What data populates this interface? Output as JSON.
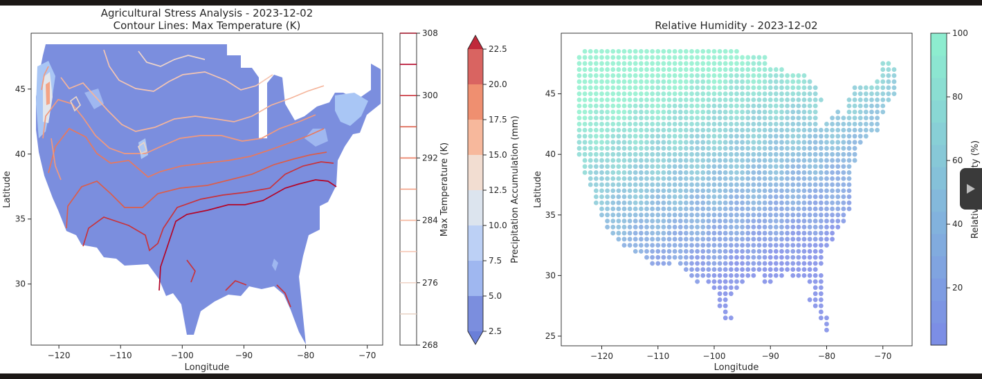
{
  "window": {
    "play_icon": "play-triangle-icon"
  },
  "chart_data": [
    {
      "type": "contour",
      "title": "Agricultural Stress Analysis - 2023-12-02",
      "subtitle": "Contour Lines: Max Temperature (K)",
      "xlabel": "Longitude",
      "ylabel": "Latitude",
      "xlim": [
        -124.5,
        -67.5
      ],
      "ylim": [
        25.3,
        49.3
      ],
      "xticks": [
        -120,
        -110,
        -100,
        -90,
        -80,
        -70
      ],
      "yticks": [
        30,
        35,
        40,
        45
      ],
      "filled_variable": "Precipitation Accumulation (mm)",
      "line_variable": "Max Temperature (K)",
      "temp_colorbar": {
        "label": "Max Temperature (K)",
        "range": [
          268,
          308
        ],
        "ticks": [
          268,
          276,
          284,
          292,
          300,
          308
        ],
        "levels": [
          272,
          276,
          280,
          284,
          288,
          292,
          296,
          300,
          304,
          308
        ]
      },
      "precip_colorbar": {
        "label": "Precipitation Accumulation (mm)",
        "range": [
          2.5,
          22.5
        ],
        "ticks": [
          2.5,
          5.0,
          7.5,
          10.0,
          12.5,
          15.0,
          17.5,
          20.0,
          22.5
        ],
        "extend": "both",
        "colormap": "coolwarm"
      }
    },
    {
      "type": "scatter",
      "title": "Relative Humidity - 2023-12-02",
      "xlabel": "Longitude",
      "ylabel": "Latitude",
      "xlim": [
        -127.2,
        -64.8
      ],
      "ylim": [
        24.2,
        50.0
      ],
      "xticks": [
        -120,
        -110,
        -100,
        -90,
        -80,
        -70
      ],
      "yticks": [
        25,
        30,
        35,
        40,
        45
      ],
      "grid_spacing_deg": 1.0,
      "colorbar": {
        "label": "Relative Humidity (%)",
        "range": [
          2,
          100
        ],
        "ticks": [
          20,
          40,
          60,
          80,
          100
        ],
        "colormap": "cool-green"
      },
      "rows": [
        {
          "lat": 48.5,
          "lons": [
            [
              -123,
              -96
            ]
          ]
        },
        {
          "lat": 48.0,
          "lons": [
            [
              -124,
              -91
            ]
          ]
        },
        {
          "lat": 47.5,
          "lons": [
            [
              -124,
              -91
            ],
            [
              -70,
              -69
            ]
          ]
        },
        {
          "lat": 47.0,
          "lons": [
            [
              -124,
              -89
            ],
            [
              -88,
              -88
            ],
            [
              -70,
              -68
            ]
          ]
        },
        {
          "lat": 46.5,
          "lons": [
            [
              -124,
              -86
            ],
            [
              -85,
              -84
            ],
            [
              -70,
              -68
            ]
          ]
        },
        {
          "lat": 46.0,
          "lons": [
            [
              -124,
              -83
            ],
            [
              -71,
              -68
            ]
          ]
        },
        {
          "lat": 45.5,
          "lons": [
            [
              -124,
              -84
            ],
            [
              -83,
              -82
            ],
            [
              -75,
              -68
            ]
          ]
        },
        {
          "lat": 45.0,
          "lons": [
            [
              -124,
              -85
            ],
            [
              -84,
              -82
            ],
            [
              -75,
              -68
            ]
          ]
        },
        {
          "lat": 44.5,
          "lons": [
            [
              -124,
              -86
            ],
            [
              -85,
              -81
            ],
            [
              -76,
              -69
            ]
          ]
        },
        {
          "lat": 44.0,
          "lons": [
            [
              -124,
              -87
            ],
            [
              -86,
              -82
            ],
            [
              -76,
              -70
            ]
          ]
        },
        {
          "lat": 43.5,
          "lons": [
            [
              -124,
              -87
            ],
            [
              -86,
              -82
            ],
            [
              -78,
              -78
            ],
            [
              -76,
              -70
            ]
          ]
        },
        {
          "lat": 43.0,
          "lons": [
            [
              -124,
              -87
            ],
            [
              -86,
              -82
            ],
            [
              -79,
              -71
            ]
          ]
        },
        {
          "lat": 42.5,
          "lons": [
            [
              -124,
              -87
            ],
            [
              -86,
              -82
            ],
            [
              -80,
              -71
            ]
          ]
        },
        {
          "lat": 42.0,
          "lons": [
            [
              -124,
              -84
            ],
            [
              -83,
              -71
            ]
          ]
        },
        {
          "lat": 41.5,
          "lons": [
            [
              -124,
              -73
            ]
          ]
        },
        {
          "lat": 41.0,
          "lons": [
            [
              -124,
              -74
            ]
          ]
        },
        {
          "lat": 40.5,
          "lons": [
            [
              -124,
              -75
            ]
          ]
        },
        {
          "lat": 40.0,
          "lons": [
            [
              -124,
              -75
            ]
          ]
        },
        {
          "lat": 39.5,
          "lons": [
            [
              -123,
              -75
            ]
          ]
        },
        {
          "lat": 39.0,
          "lons": [
            [
              -123,
              -76
            ]
          ]
        },
        {
          "lat": 38.5,
          "lons": [
            [
              -123,
              -76
            ]
          ]
        },
        {
          "lat": 38.0,
          "lons": [
            [
              -122,
              -76
            ]
          ]
        },
        {
          "lat": 37.5,
          "lons": [
            [
              -122,
              -76
            ]
          ]
        },
        {
          "lat": 37.0,
          "lons": [
            [
              -121,
              -76
            ]
          ]
        },
        {
          "lat": 36.5,
          "lons": [
            [
              -121,
              -76
            ]
          ]
        },
        {
          "lat": 36.0,
          "lons": [
            [
              -121,
              -76
            ]
          ]
        },
        {
          "lat": 35.5,
          "lons": [
            [
              -120,
              -76
            ]
          ]
        },
        {
          "lat": 35.0,
          "lons": [
            [
              -120,
              -77
            ]
          ]
        },
        {
          "lat": 34.5,
          "lons": [
            [
              -119,
              -77
            ]
          ]
        },
        {
          "lat": 34.0,
          "lons": [
            [
              -119,
              -78
            ]
          ]
        },
        {
          "lat": 33.5,
          "lons": [
            [
              -118,
              -79
            ]
          ]
        },
        {
          "lat": 33.0,
          "lons": [
            [
              -117,
              -79
            ]
          ]
        },
        {
          "lat": 32.5,
          "lons": [
            [
              -116,
              -80
            ]
          ]
        },
        {
          "lat": 32.0,
          "lons": [
            [
              -114,
              -81
            ]
          ]
        },
        {
          "lat": 31.5,
          "lons": [
            [
              -112,
              -81
            ]
          ]
        },
        {
          "lat": 31.0,
          "lons": [
            [
              -111,
              -108
            ],
            [
              -106,
              -81
            ]
          ]
        },
        {
          "lat": 30.5,
          "lons": [
            [
              -105,
              -82
            ]
          ]
        },
        {
          "lat": 30.0,
          "lons": [
            [
              -104,
              -93
            ],
            [
              -91,
              -88
            ],
            [
              -86,
              -84
            ],
            [
              -83,
              -81
            ]
          ]
        },
        {
          "lat": 29.5,
          "lons": [
            [
              -103,
              -103
            ],
            [
              -101,
              -95
            ],
            [
              -91,
              -90
            ],
            [
              -83,
              -81
            ]
          ]
        },
        {
          "lat": 29.0,
          "lons": [
            [
              -100,
              -96
            ],
            [
              -82,
              -81
            ]
          ]
        },
        {
          "lat": 28.5,
          "lons": [
            [
              -99,
              -97
            ],
            [
              -82,
              -81
            ]
          ]
        },
        {
          "lat": 28.0,
          "lons": [
            [
              -99,
              -98
            ],
            [
              -83,
              -81
            ]
          ]
        },
        {
          "lat": 27.5,
          "lons": [
            [
              -99,
              -98
            ],
            [
              -82,
              -81
            ]
          ]
        },
        {
          "lat": 27.0,
          "lons": [
            [
              -98,
              -98
            ],
            [
              -81,
              -81
            ]
          ]
        },
        {
          "lat": 26.5,
          "lons": [
            [
              -98,
              -97
            ],
            [
              -81,
              -80
            ]
          ]
        },
        {
          "lat": 26.0,
          "lons": [
            [
              -80,
              -80
            ]
          ]
        },
        {
          "lat": 25.5,
          "lons": [
            [
              -80,
              -80
            ]
          ]
        }
      ]
    }
  ]
}
